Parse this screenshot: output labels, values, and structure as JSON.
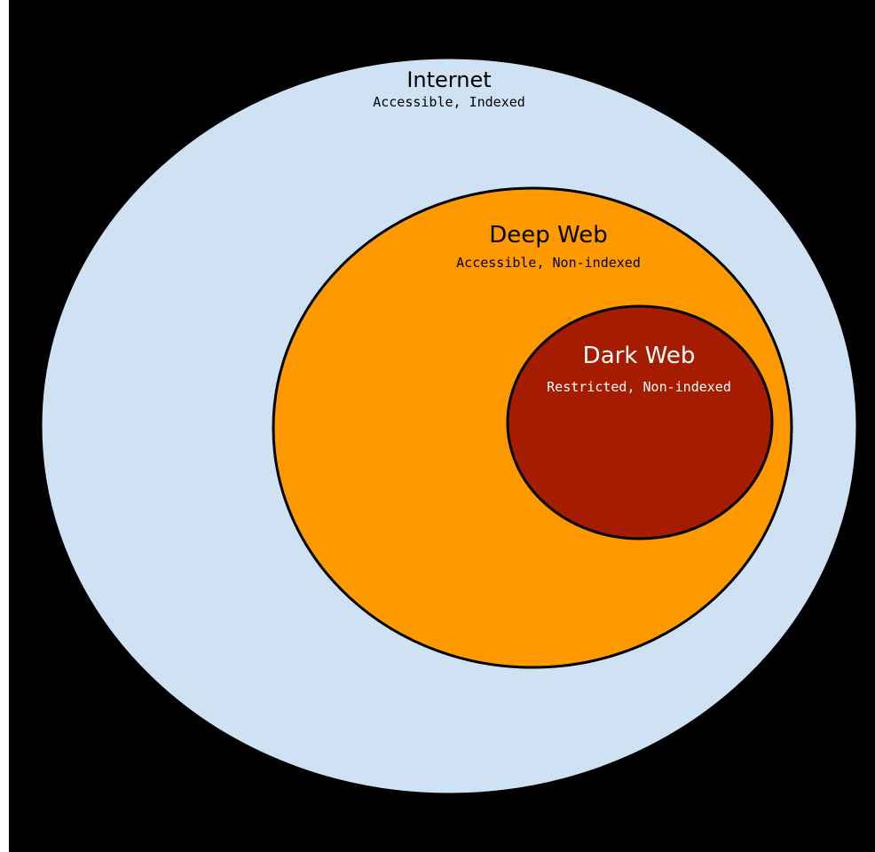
{
  "diagram": {
    "nodes": [
      {
        "id": "internet",
        "label": "Internet",
        "description": "Accessible, Indexed",
        "fill": "#cfe2f3",
        "text_color": "#000000"
      },
      {
        "id": "deep-web",
        "label": "Deep Web",
        "description": "Accessible, Non-indexed",
        "fill": "#ff9900",
        "text_color": "#000000"
      },
      {
        "id": "dark-web",
        "label": "Dark Web",
        "description": "Restricted, Non-indexed",
        "fill": "#a61c00",
        "text_color": "#ffffff"
      }
    ],
    "background": "#000000",
    "outline": "#000000"
  }
}
